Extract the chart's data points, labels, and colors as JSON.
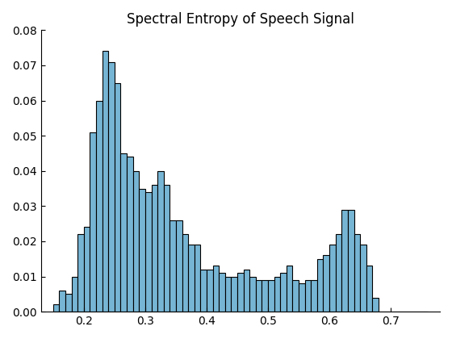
{
  "title": "Spectral Entropy of Speech Signal",
  "bar_color": "#77b5d4",
  "edge_color": "#000000",
  "xlim": [
    0.13,
    0.78
  ],
  "ylim": [
    0,
    0.08
  ],
  "yticks": [
    0,
    0.01,
    0.02,
    0.03,
    0.04,
    0.05,
    0.06,
    0.07,
    0.08
  ],
  "xticks": [
    0.2,
    0.3,
    0.4,
    0.5,
    0.6,
    0.7
  ],
  "bin_width": 0.01,
  "bin_starts": [
    0.15,
    0.16,
    0.17,
    0.18,
    0.19,
    0.2,
    0.21,
    0.22,
    0.23,
    0.24,
    0.25,
    0.26,
    0.27,
    0.28,
    0.29,
    0.3,
    0.31,
    0.32,
    0.33,
    0.34,
    0.35,
    0.36,
    0.37,
    0.38,
    0.39,
    0.4,
    0.41,
    0.42,
    0.43,
    0.44,
    0.45,
    0.46,
    0.47,
    0.48,
    0.49,
    0.5,
    0.51,
    0.52,
    0.53,
    0.54,
    0.55,
    0.56,
    0.57,
    0.58,
    0.59,
    0.6,
    0.61,
    0.62,
    0.63,
    0.64,
    0.65,
    0.66,
    0.67,
    0.68,
    0.69,
    0.7,
    0.71,
    0.72,
    0.73,
    0.74,
    0.75
  ],
  "heights": [
    0.002,
    0.006,
    0.005,
    0.01,
    0.022,
    0.024,
    0.051,
    0.06,
    0.074,
    0.071,
    0.065,
    0.045,
    0.044,
    0.04,
    0.035,
    0.034,
    0.036,
    0.04,
    0.036,
    0.026,
    0.026,
    0.022,
    0.019,
    0.019,
    0.012,
    0.012,
    0.013,
    0.011,
    0.01,
    0.01,
    0.011,
    0.012,
    0.01,
    0.009,
    0.009,
    0.009,
    0.01,
    0.011,
    0.013,
    0.009,
    0.008,
    0.009,
    0.009,
    0.015,
    0.016,
    0.019,
    0.022,
    0.029,
    0.029,
    0.022,
    0.019,
    0.013,
    0.004,
    0.0,
    0.0,
    0.0,
    0.0,
    0.0,
    0.0,
    0.0,
    0.0
  ],
  "background_color": "#ffffff",
  "title_fontsize": 12
}
